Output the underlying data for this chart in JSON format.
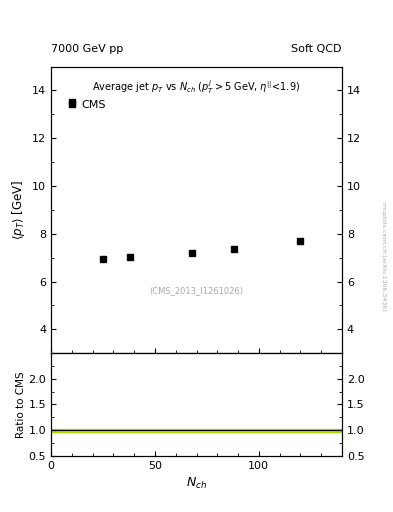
{
  "title_top_left": "7000 GeV pp",
  "title_top_right": "Soft QCD",
  "plot_title": "Average jet $p_T$ vs $N_{ch}$ ($p^{j}_{T}>$5 GeV, $\\eta^{||}$<1.9)",
  "cms_label": "CMS",
  "watermark": "(CMS_2013_I1261026)",
  "arxiv_label": "mcplots.cern.ch [arXiv:1306.3436]",
  "data_x": [
    10,
    25,
    38,
    68,
    88,
    120
  ],
  "data_y": [
    13.5,
    6.95,
    7.05,
    7.2,
    7.35,
    7.7
  ],
  "marker": "s",
  "marker_color": "black",
  "marker_size": 4,
  "ylabel_main": "$\\langle p_T \\rangle$ [GeV]",
  "ylabel_ratio": "Ratio to CMS",
  "xlabel": "$N_{ch}$",
  "xlim": [
    0,
    140
  ],
  "ylim_main": [
    3.0,
    15.0
  ],
  "ylim_ratio": [
    0.5,
    2.5
  ],
  "yticks_main": [
    4,
    6,
    8,
    10,
    12,
    14
  ],
  "yticks_ratio": [
    0.5,
    1.0,
    1.5,
    2.0
  ],
  "xticks": [
    0,
    50,
    100
  ],
  "ratio_band_color": "#aadd00",
  "ratio_band_lo": 0.97,
  "ratio_band_hi": 1.03,
  "ratio_line_color": "black",
  "background_color": "white",
  "arxiv_color": "#aaaaaa"
}
